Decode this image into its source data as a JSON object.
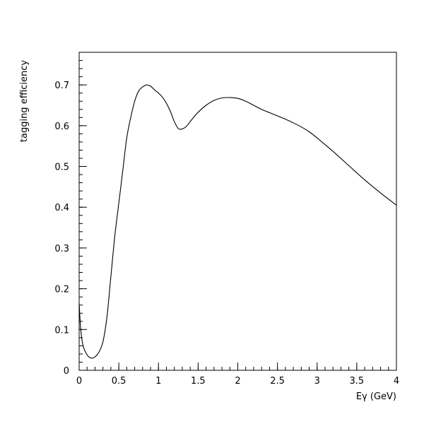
{
  "chart_data": {
    "type": "line",
    "title": "",
    "xlabel": "Eγ (GeV)",
    "ylabel": "tagging efficiency",
    "xlim": [
      0,
      4
    ],
    "ylim": [
      0,
      0.78
    ],
    "grid": false,
    "x_major_ticks": [
      0,
      0.5,
      1,
      1.5,
      2,
      2.5,
      3,
      3.5,
      4
    ],
    "x_tick_labels": [
      "0",
      "0.5",
      "1",
      "1.5",
      "2",
      "2.5",
      "3",
      "3.5",
      "4"
    ],
    "y_major_ticks": [
      0,
      0.1,
      0.2,
      0.3,
      0.4,
      0.5,
      0.6,
      0.7
    ],
    "y_tick_labels": [
      "0",
      "0.1",
      "0.2",
      "0.3",
      "0.4",
      "0.5",
      "0.6",
      "0.7"
    ],
    "x_minor_step": 0.1,
    "y_minor_step": 0.02,
    "color": "#000000",
    "series": [
      {
        "x": [
          0.0,
          0.02,
          0.05,
          0.1,
          0.15,
          0.2,
          0.25,
          0.3,
          0.35,
          0.4,
          0.45,
          0.5,
          0.55,
          0.6,
          0.65,
          0.7,
          0.75,
          0.8,
          0.85,
          0.9,
          0.95,
          1.0,
          1.05,
          1.1,
          1.15,
          1.2,
          1.25,
          1.3,
          1.35,
          1.4,
          1.45,
          1.5,
          1.6,
          1.7,
          1.8,
          1.9,
          2.0,
          2.1,
          2.2,
          2.3,
          2.4,
          2.5,
          2.6,
          2.7,
          2.8,
          2.9,
          3.0,
          3.2,
          3.4,
          3.6,
          3.8,
          4.0
        ],
        "values": [
          0.165,
          0.1,
          0.06,
          0.038,
          0.03,
          0.033,
          0.045,
          0.07,
          0.13,
          0.23,
          0.33,
          0.41,
          0.49,
          0.57,
          0.62,
          0.66,
          0.685,
          0.695,
          0.7,
          0.697,
          0.688,
          0.68,
          0.67,
          0.655,
          0.635,
          0.61,
          0.593,
          0.592,
          0.598,
          0.61,
          0.622,
          0.633,
          0.65,
          0.662,
          0.668,
          0.669,
          0.667,
          0.66,
          0.65,
          0.64,
          0.632,
          0.624,
          0.616,
          0.607,
          0.597,
          0.585,
          0.57,
          0.537,
          0.502,
          0.467,
          0.435,
          0.405
        ]
      }
    ]
  }
}
